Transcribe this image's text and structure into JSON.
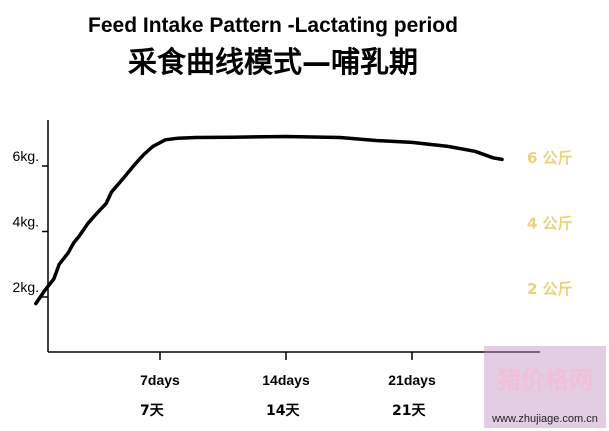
{
  "title_en": "Feed Intake Pattern -Lactating period",
  "title_zh": "采食曲线模式—哺乳期",
  "chart_data": {
    "type": "line",
    "title": "Feed Intake Pattern -Lactating period",
    "subtitle": "采食曲线模式—哺乳期",
    "xlabel": "",
    "ylabel": "",
    "x_ticks": [
      {
        "value": 7,
        "label": "7days",
        "label_zh": "7天"
      },
      {
        "value": 14,
        "label": "14days",
        "label_zh": "14天"
      },
      {
        "value": 21,
        "label": "21days",
        "label_zh": "21天"
      }
    ],
    "y_ticks": [
      {
        "value": 2,
        "label": "2kg."
      },
      {
        "value": 4,
        "label": "4kg."
      },
      {
        "value": 6,
        "label": "6kg."
      }
    ],
    "right_labels": [
      {
        "value": 6,
        "label": "6 公斤"
      },
      {
        "value": 4,
        "label": "4 公斤"
      },
      {
        "value": 2,
        "label": "2 公斤"
      }
    ],
    "xlim": [
      0,
      27
    ],
    "ylim": [
      0,
      7
    ],
    "grid": false,
    "series": [
      {
        "color": "#000000",
        "x": [
          0.1,
          0.6,
          1.1,
          1.4,
          1.9,
          2.2,
          2.5,
          3.0,
          3.4,
          4.0,
          4.3,
          5.0,
          5.6,
          6.1,
          6.6,
          7.3,
          8.0,
          9.0,
          11.0,
          14.0,
          17.0,
          19.0,
          21.0,
          23.0,
          24.5,
          25.5,
          26.0
        ],
        "y": [
          1.8,
          2.2,
          2.55,
          3.0,
          3.35,
          3.65,
          3.85,
          4.25,
          4.5,
          4.85,
          5.2,
          5.65,
          6.05,
          6.35,
          6.6,
          6.8,
          6.85,
          6.87,
          6.88,
          6.9,
          6.87,
          6.78,
          6.72,
          6.6,
          6.45,
          6.25,
          6.2
        ]
      }
    ]
  },
  "watermark": {
    "main": "猪价格网",
    "url": "www.zhujiage.com.cn",
    "bg_color": "#c090c0"
  }
}
